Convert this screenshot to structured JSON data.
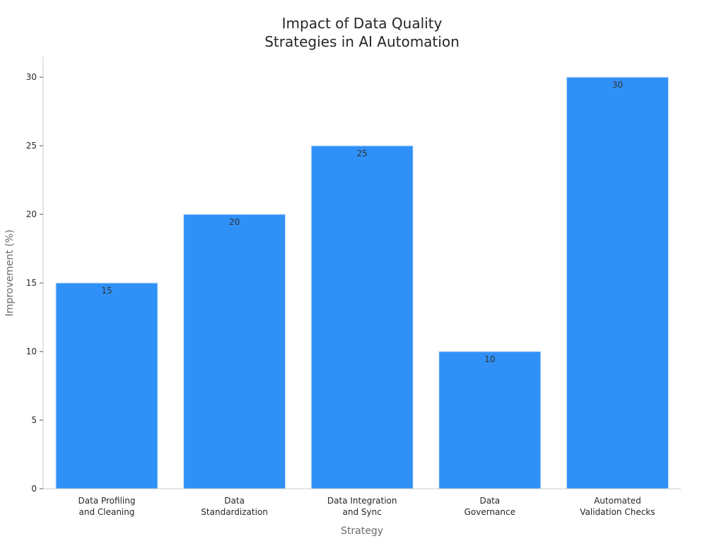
{
  "chart_data": {
    "type": "bar",
    "title_lines": [
      "Impact of Data Quality",
      "Strategies in AI Automation"
    ],
    "xlabel": "Strategy",
    "ylabel": "Improvement (%)",
    "categories": [
      [
        "Data Profiling",
        "and Cleaning"
      ],
      [
        "Data",
        "Standardization"
      ],
      [
        "Data Integration",
        "and Sync"
      ],
      [
        "Data",
        "Governance"
      ],
      [
        "Automated",
        "Validation Checks"
      ]
    ],
    "values": [
      15,
      20,
      25,
      10,
      30
    ],
    "data_labels": [
      "15",
      "20",
      "25",
      "10",
      "30"
    ],
    "ylim": [
      0,
      31.5
    ],
    "yticks": [
      0,
      5,
      10,
      15,
      20,
      25,
      30
    ],
    "ytick_labels": [
      "0",
      "5",
      "10",
      "15",
      "20",
      "25",
      "30"
    ],
    "grid": false,
    "bar_color": "#2f91f7",
    "bar_edge_color": "#d0e3f7",
    "axis_color": "#cccccc"
  }
}
